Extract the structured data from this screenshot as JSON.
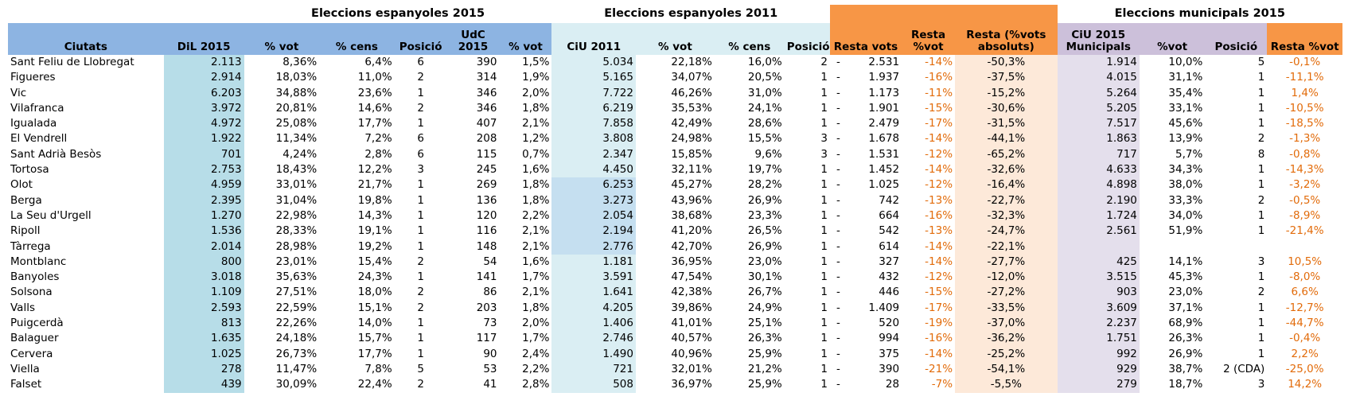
{
  "groups": {
    "esp2015": "Eleccions espanyoles 2015",
    "esp2011": "Eleccions espanyoles 2011",
    "mun2015": "Eleccions municipals 2015"
  },
  "headers": {
    "ciutats": "Ciutats",
    "dil2015": "DiL 2015",
    "pvot1": "% vot",
    "pcens1": "% cens",
    "posicio1": "Posició",
    "udc2015": "UdC 2015",
    "pvot2": "% vot",
    "ciu2011": "CiU 2011",
    "pvot3": "% vot",
    "pcens2": "% cens",
    "posicio2": "Posició",
    "resta_vots": "Resta vots",
    "resta_pvot": "Resta %vot",
    "resta_abs": "Resta (%vots absoluts)",
    "ciu2015mun": "CiU 2015 Municipals",
    "pvot4": "%vot",
    "posicio3": "Posició",
    "resta_pvot2": "Resta %vot"
  },
  "rows": [
    {
      "ciutat": "Sant Feliu de Llobregat",
      "dil": "2.113",
      "dil_vot": "8,36%",
      "dil_cens": "6,4%",
      "dil_pos": "6",
      "udc": "390",
      "udc_vot": "1,5%",
      "ciu": "5.034",
      "ciu_vot": "22,18%",
      "ciu_cens": "16,0%",
      "ciu_pos": "2",
      "dash": "-",
      "resta_vots": "2.531",
      "resta_pvot": "-14%",
      "resta_abs": "-50,3%",
      "mun": "1.914",
      "mun_vot": "10,0%",
      "mun_pos": "5",
      "mun_resta": "-0,1%"
    },
    {
      "ciutat": "Figueres",
      "dil": "2.914",
      "dil_vot": "18,03%",
      "dil_cens": "11,0%",
      "dil_pos": "2",
      "udc": "314",
      "udc_vot": "1,9%",
      "ciu": "5.165",
      "ciu_vot": "34,07%",
      "ciu_cens": "20,5%",
      "ciu_pos": "1",
      "dash": "-",
      "resta_vots": "1.937",
      "resta_pvot": "-16%",
      "resta_abs": "-37,5%",
      "mun": "4.015",
      "mun_vot": "31,1%",
      "mun_pos": "1",
      "mun_resta": "-11,1%"
    },
    {
      "ciutat": "Vic",
      "dil": "6.203",
      "dil_vot": "34,88%",
      "dil_cens": "23,6%",
      "dil_pos": "1",
      "udc": "346",
      "udc_vot": "2,0%",
      "ciu": "7.722",
      "ciu_vot": "46,26%",
      "ciu_cens": "31,0%",
      "ciu_pos": "1",
      "dash": "-",
      "resta_vots": "1.173",
      "resta_pvot": "-11%",
      "resta_abs": "-15,2%",
      "mun": "5.264",
      "mun_vot": "35,4%",
      "mun_pos": "1",
      "mun_resta": "1,4%"
    },
    {
      "ciutat": "Vilafranca",
      "dil": "3.972",
      "dil_vot": "20,81%",
      "dil_cens": "14,6%",
      "dil_pos": "2",
      "udc": "346",
      "udc_vot": "1,8%",
      "ciu": "6.219",
      "ciu_vot": "35,53%",
      "ciu_cens": "24,1%",
      "ciu_pos": "1",
      "dash": "-",
      "resta_vots": "1.901",
      "resta_pvot": "-15%",
      "resta_abs": "-30,6%",
      "mun": "5.205",
      "mun_vot": "33,1%",
      "mun_pos": "1",
      "mun_resta": "-10,5%"
    },
    {
      "ciutat": "Igualada",
      "dil": "4.972",
      "dil_vot": "25,08%",
      "dil_cens": "17,7%",
      "dil_pos": "1",
      "udc": "407",
      "udc_vot": "2,1%",
      "ciu": "7.858",
      "ciu_vot": "42,49%",
      "ciu_cens": "28,6%",
      "ciu_pos": "1",
      "dash": "-",
      "resta_vots": "2.479",
      "resta_pvot": "-17%",
      "resta_abs": "-31,5%",
      "mun": "7.517",
      "mun_vot": "45,6%",
      "mun_pos": "1",
      "mun_resta": "-18,5%"
    },
    {
      "ciutat": "El Vendrell",
      "dil": "1.922",
      "dil_vot": "11,34%",
      "dil_cens": "7,2%",
      "dil_pos": "6",
      "udc": "208",
      "udc_vot": "1,2%",
      "ciu": "3.808",
      "ciu_vot": "24,98%",
      "ciu_cens": "15,5%",
      "ciu_pos": "3",
      "dash": "-",
      "resta_vots": "1.678",
      "resta_pvot": "-14%",
      "resta_abs": "-44,1%",
      "mun": "1.863",
      "mun_vot": "13,9%",
      "mun_pos": "2",
      "mun_resta": "-1,3%"
    },
    {
      "ciutat": "Sant Adrià Besòs",
      "dil": "701",
      "dil_vot": "4,24%",
      "dil_cens": "2,8%",
      "dil_pos": "6",
      "udc": "115",
      "udc_vot": "0,7%",
      "ciu": "2.347",
      "ciu_vot": "15,85%",
      "ciu_cens": "9,6%",
      "ciu_pos": "3",
      "dash": "-",
      "resta_vots": "1.531",
      "resta_pvot": "-12%",
      "resta_abs": "-65,2%",
      "mun": "717",
      "mun_vot": "5,7%",
      "mun_pos": "8",
      "mun_resta": "-0,8%"
    },
    {
      "ciutat": "Tortosa",
      "dil": "2.753",
      "dil_vot": "18,43%",
      "dil_cens": "12,2%",
      "dil_pos": "3",
      "udc": "245",
      "udc_vot": "1,6%",
      "ciu": "4.450",
      "ciu_vot": "32,11%",
      "ciu_cens": "19,7%",
      "ciu_pos": "1",
      "dash": "-",
      "resta_vots": "1.452",
      "resta_pvot": "-14%",
      "resta_abs": "-32,6%",
      "mun": "4.633",
      "mun_vot": "34,3%",
      "mun_pos": "1",
      "mun_resta": "-14,3%"
    },
    {
      "ciutat": "Olot",
      "dil": "4.959",
      "dil_vot": "33,01%",
      "dil_cens": "21,7%",
      "dil_pos": "1",
      "udc": "269",
      "udc_vot": "1,8%",
      "ciu": "6.253",
      "ciu_vot": "45,27%",
      "ciu_cens": "28,2%",
      "ciu_pos": "1",
      "dash": "-",
      "resta_vots": "1.025",
      "resta_pvot": "-12%",
      "resta_abs": "-16,4%",
      "mun": "4.898",
      "mun_vot": "38,0%",
      "mun_pos": "1",
      "mun_resta": "-3,2%"
    },
    {
      "ciutat": "Berga",
      "dil": "2.395",
      "dil_vot": "31,04%",
      "dil_cens": "19,8%",
      "dil_pos": "1",
      "udc": "136",
      "udc_vot": "1,8%",
      "ciu": "3.273",
      "ciu_vot": "43,96%",
      "ciu_cens": "26,9%",
      "ciu_pos": "1",
      "dash": "-",
      "resta_vots": "742",
      "resta_pvot": "-13%",
      "resta_abs": "-22,7%",
      "mun": "2.190",
      "mun_vot": "33,3%",
      "mun_pos": "2",
      "mun_resta": "-0,5%"
    },
    {
      "ciutat": "La Seu d'Urgell",
      "dil": "1.270",
      "dil_vot": "22,98%",
      "dil_cens": "14,3%",
      "dil_pos": "1",
      "udc": "120",
      "udc_vot": "2,2%",
      "ciu": "2.054",
      "ciu_vot": "38,68%",
      "ciu_cens": "23,3%",
      "ciu_pos": "1",
      "dash": "-",
      "resta_vots": "664",
      "resta_pvot": "-16%",
      "resta_abs": "-32,3%",
      "mun": "1.724",
      "mun_vot": "34,0%",
      "mun_pos": "1",
      "mun_resta": "-8,9%"
    },
    {
      "ciutat": "Ripoll",
      "dil": "1.536",
      "dil_vot": "28,33%",
      "dil_cens": "19,1%",
      "dil_pos": "1",
      "udc": "116",
      "udc_vot": "2,1%",
      "ciu": "2.194",
      "ciu_vot": "41,20%",
      "ciu_cens": "26,5%",
      "ciu_pos": "1",
      "dash": "-",
      "resta_vots": "542",
      "resta_pvot": "-13%",
      "resta_abs": "-24,7%",
      "mun": "2.561",
      "mun_vot": "51,9%",
      "mun_pos": "1",
      "mun_resta": "-21,4%"
    },
    {
      "ciutat": "Tàrrega",
      "dil": "2.014",
      "dil_vot": "28,98%",
      "dil_cens": "19,2%",
      "dil_pos": "1",
      "udc": "148",
      "udc_vot": "2,1%",
      "ciu": "2.776",
      "ciu_vot": "42,70%",
      "ciu_cens": "26,9%",
      "ciu_pos": "1",
      "dash": "-",
      "resta_vots": "614",
      "resta_pvot": "-14%",
      "resta_abs": "-22,1%",
      "mun": "",
      "mun_vot": "",
      "mun_pos": "",
      "mun_resta": ""
    },
    {
      "ciutat": "Montblanc",
      "dil": "800",
      "dil_vot": "23,01%",
      "dil_cens": "15,4%",
      "dil_pos": "2",
      "udc": "54",
      "udc_vot": "1,6%",
      "ciu": "1.181",
      "ciu_vot": "36,95%",
      "ciu_cens": "23,0%",
      "ciu_pos": "1",
      "dash": "-",
      "resta_vots": "327",
      "resta_pvot": "-14%",
      "resta_abs": "-27,7%",
      "mun": "425",
      "mun_vot": "14,1%",
      "mun_pos": "3",
      "mun_resta": "10,5%"
    },
    {
      "ciutat": "Banyoles",
      "dil": "3.018",
      "dil_vot": "35,63%",
      "dil_cens": "24,3%",
      "dil_pos": "1",
      "udc": "141",
      "udc_vot": "1,7%",
      "ciu": "3.591",
      "ciu_vot": "47,54%",
      "ciu_cens": "30,1%",
      "ciu_pos": "1",
      "dash": "-",
      "resta_vots": "432",
      "resta_pvot": "-12%",
      "resta_abs": "-12,0%",
      "mun": "3.515",
      "mun_vot": "45,3%",
      "mun_pos": "1",
      "mun_resta": "-8,0%"
    },
    {
      "ciutat": "Solsona",
      "dil": "1.109",
      "dil_vot": "27,51%",
      "dil_cens": "18,0%",
      "dil_pos": "2",
      "udc": "86",
      "udc_vot": "2,1%",
      "ciu": "1.641",
      "ciu_vot": "42,38%",
      "ciu_cens": "26,7%",
      "ciu_pos": "1",
      "dash": "-",
      "resta_vots": "446",
      "resta_pvot": "-15%",
      "resta_abs": "-27,2%",
      "mun": "903",
      "mun_vot": "23,0%",
      "mun_pos": "2",
      "mun_resta": "6,6%"
    },
    {
      "ciutat": "Valls",
      "dil": "2.593",
      "dil_vot": "22,59%",
      "dil_cens": "15,1%",
      "dil_pos": "2",
      "udc": "203",
      "udc_vot": "1,8%",
      "ciu": "4.205",
      "ciu_vot": "39,86%",
      "ciu_cens": "24,9%",
      "ciu_pos": "1",
      "dash": "-",
      "resta_vots": "1.409",
      "resta_pvot": "-17%",
      "resta_abs": "-33,5%",
      "mun": "3.609",
      "mun_vot": "37,1%",
      "mun_pos": "1",
      "mun_resta": "-12,7%"
    },
    {
      "ciutat": "Puigcerdà",
      "dil": "813",
      "dil_vot": "22,26%",
      "dil_cens": "14,0%",
      "dil_pos": "1",
      "udc": "73",
      "udc_vot": "2,0%",
      "ciu": "1.406",
      "ciu_vot": "41,01%",
      "ciu_cens": "25,1%",
      "ciu_pos": "1",
      "dash": "-",
      "resta_vots": "520",
      "resta_pvot": "-19%",
      "resta_abs": "-37,0%",
      "mun": "2.237",
      "mun_vot": "68,9%",
      "mun_pos": "1",
      "mun_resta": "-44,7%"
    },
    {
      "ciutat": "Balaguer",
      "dil": "1.635",
      "dil_vot": "24,18%",
      "dil_cens": "15,7%",
      "dil_pos": "1",
      "udc": "117",
      "udc_vot": "1,7%",
      "ciu": "2.746",
      "ciu_vot": "40,57%",
      "ciu_cens": "26,3%",
      "ciu_pos": "1",
      "dash": "-",
      "resta_vots": "994",
      "resta_pvot": "-16%",
      "resta_abs": "-36,2%",
      "mun": "1.751",
      "mun_vot": "26,3%",
      "mun_pos": "1",
      "mun_resta": "-0,4%"
    },
    {
      "ciutat": "Cervera",
      "dil": "1.025",
      "dil_vot": "26,73%",
      "dil_cens": "17,7%",
      "dil_pos": "1",
      "udc": "90",
      "udc_vot": "2,4%",
      "ciu": "1.490",
      "ciu_vot": "40,96%",
      "ciu_cens": "25,9%",
      "ciu_pos": "1",
      "dash": "-",
      "resta_vots": "375",
      "resta_pvot": "-14%",
      "resta_abs": "-25,2%",
      "mun": "992",
      "mun_vot": "26,9%",
      "mun_pos": "1",
      "mun_resta": "2,2%"
    },
    {
      "ciutat": "Viella",
      "dil": "278",
      "dil_vot": "11,47%",
      "dil_cens": "7,8%",
      "dil_pos": "5",
      "udc": "53",
      "udc_vot": "2,2%",
      "ciu": "721",
      "ciu_vot": "32,01%",
      "ciu_cens": "21,2%",
      "ciu_pos": "1",
      "dash": "-",
      "resta_vots": "390",
      "resta_pvot": "-21%",
      "resta_abs": "-54,1%",
      "mun": "929",
      "mun_vot": "38,7%",
      "mun_pos": "2 (CDA)",
      "mun_resta": "-25,0%"
    },
    {
      "ciutat": "Falset",
      "dil": "439",
      "dil_vot": "30,09%",
      "dil_cens": "22,4%",
      "dil_pos": "2",
      "udc": "41",
      "udc_vot": "2,8%",
      "ciu": "508",
      "ciu_vot": "36,97%",
      "ciu_cens": "25,9%",
      "ciu_pos": "1",
      "dash": "-",
      "resta_vots": "28",
      "resta_pvot": "-7%",
      "resta_abs": "-5,5%",
      "mun": "279",
      "mun_vot": "18,7%",
      "mun_pos": "3",
      "mun_resta": "14,2%"
    }
  ]
}
